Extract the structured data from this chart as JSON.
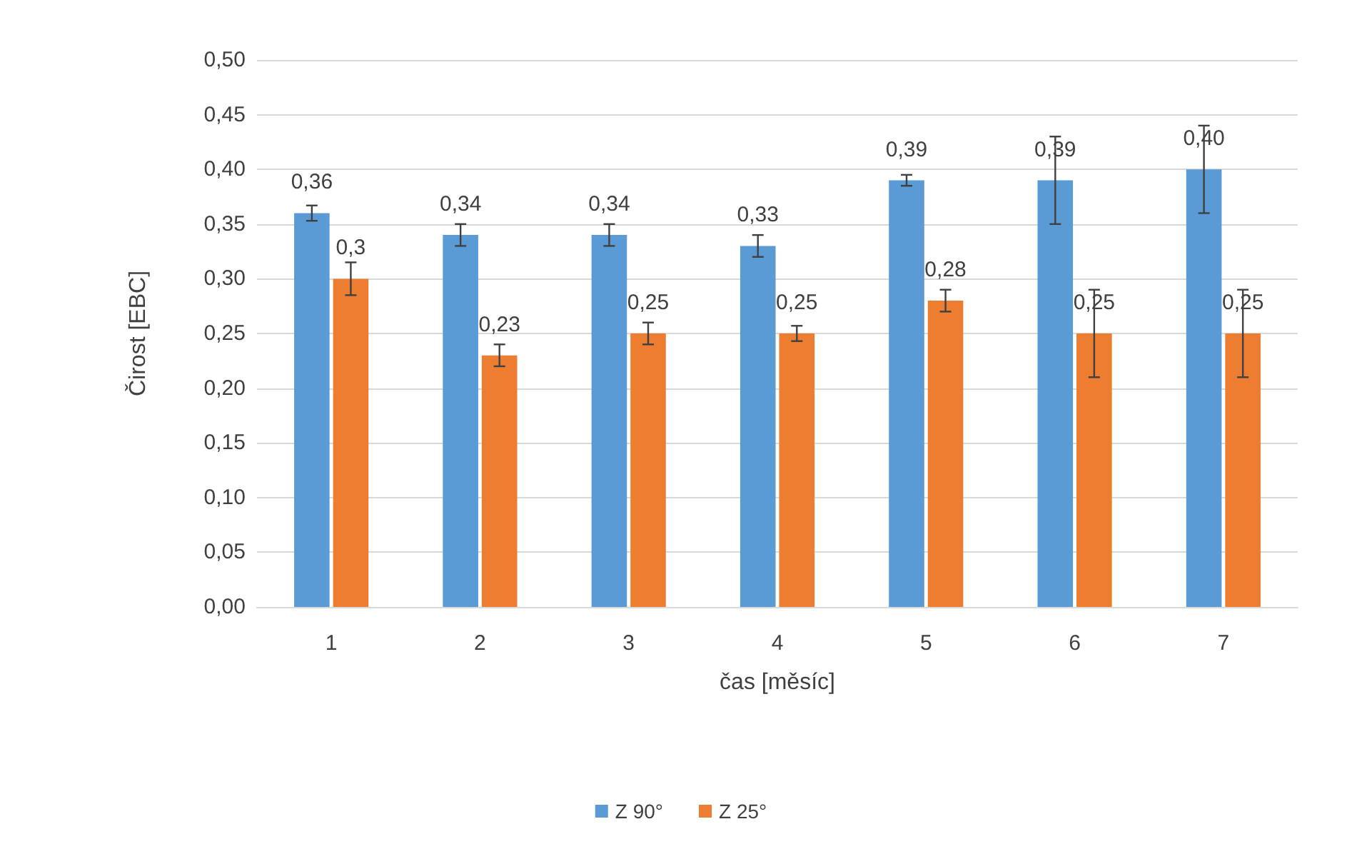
{
  "chart_data": {
    "type": "bar",
    "xlabel": "čas [měsíc]",
    "ylabel": "Čirost [EBC]",
    "categories": [
      "1",
      "2",
      "3",
      "4",
      "5",
      "6",
      "7"
    ],
    "series": [
      {
        "name": "Z 90°",
        "color": "#5b9bd5",
        "values": [
          0.36,
          0.34,
          0.34,
          0.33,
          0.39,
          0.39,
          0.4
        ],
        "errors": [
          0.007,
          0.01,
          0.01,
          0.01,
          0.005,
          0.04,
          0.04
        ],
        "value_labels": [
          "0,36",
          "0,34",
          "0,34",
          "0,33",
          "0,39",
          "0,39",
          "0,40"
        ]
      },
      {
        "name": "Z 25°",
        "color": "#ed7d31",
        "values": [
          0.3,
          0.23,
          0.25,
          0.25,
          0.28,
          0.25,
          0.25
        ],
        "errors": [
          0.015,
          0.01,
          0.01,
          0.007,
          0.01,
          0.04,
          0.04
        ],
        "value_labels": [
          "0,3",
          "0,23",
          "0,25",
          "0,25",
          "0,28",
          "0,25",
          "0,25"
        ]
      }
    ],
    "ylim": [
      0,
      0.5
    ],
    "yticks": [
      {
        "value": 0,
        "label": "0,00"
      },
      {
        "value": 0.05,
        "label": "0,05"
      },
      {
        "value": 0.1,
        "label": "0,10"
      },
      {
        "value": 0.15,
        "label": "0,15"
      },
      {
        "value": 0.2,
        "label": "0,20"
      },
      {
        "value": 0.25,
        "label": "0,25"
      },
      {
        "value": 0.3,
        "label": "0,30"
      },
      {
        "value": 0.35,
        "label": "0,35"
      },
      {
        "value": 0.4,
        "label": "0,40"
      },
      {
        "value": 0.45,
        "label": "0,45"
      },
      {
        "value": 0.5,
        "label": "0,50"
      }
    ],
    "grid": "y",
    "legend": "bottom"
  }
}
